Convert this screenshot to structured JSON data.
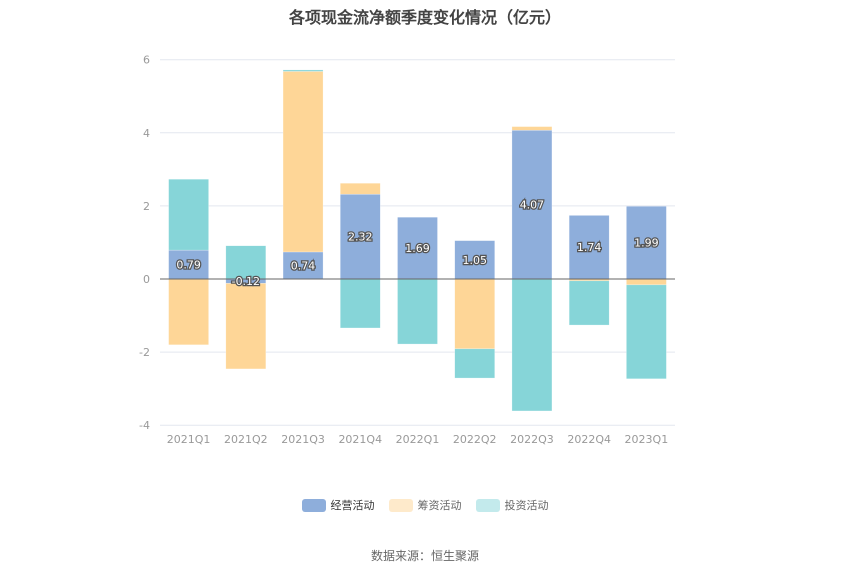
{
  "title": "各项现金流净额季度变化情况（亿元）",
  "source": "数据来源：恒生聚源",
  "legend": [
    {
      "label": "经营活动",
      "color": "#8eaedb"
    },
    {
      "label": "筹资活动",
      "color": "#fed697"
    },
    {
      "label": "投资活动",
      "color": "#86d5d8"
    }
  ],
  "chart_data": {
    "type": "bar",
    "stacked": true,
    "title": "各项现金流净额季度变化情况（亿元）",
    "xlabel": "",
    "ylabel": "",
    "ylim": [
      -4,
      6
    ],
    "yticks": [
      6,
      4,
      2,
      0,
      -2,
      -4
    ],
    "grid": true,
    "legend_position": "bottom",
    "categories": [
      "2021Q1",
      "2021Q2",
      "2021Q3",
      "2021Q4",
      "2022Q1",
      "2022Q2",
      "2022Q3",
      "2022Q4",
      "2023Q1"
    ],
    "series": [
      {
        "name": "经营活动",
        "color": "#8eaedb",
        "values": [
          0.79,
          -0.12,
          0.74,
          2.32,
          1.69,
          1.05,
          4.07,
          1.74,
          1.99
        ],
        "labels": [
          "0.79",
          "-0.12",
          "0.74",
          "2.32",
          "1.69",
          "1.05",
          "4.07",
          "1.74",
          "1.99"
        ]
      },
      {
        "name": "筹资活动",
        "color": "#fed697",
        "values": [
          -1.8,
          -2.34,
          4.94,
          0.3,
          0.0,
          -1.91,
          0.1,
          -0.05,
          -0.16
        ]
      },
      {
        "name": "投资活动",
        "color": "#86d5d8",
        "values": [
          1.94,
          0.91,
          0.04,
          -1.34,
          -1.78,
          -0.8,
          -3.61,
          -1.21,
          -2.57
        ]
      }
    ],
    "annotations": "Data labels shown only on 经营活动 series"
  }
}
